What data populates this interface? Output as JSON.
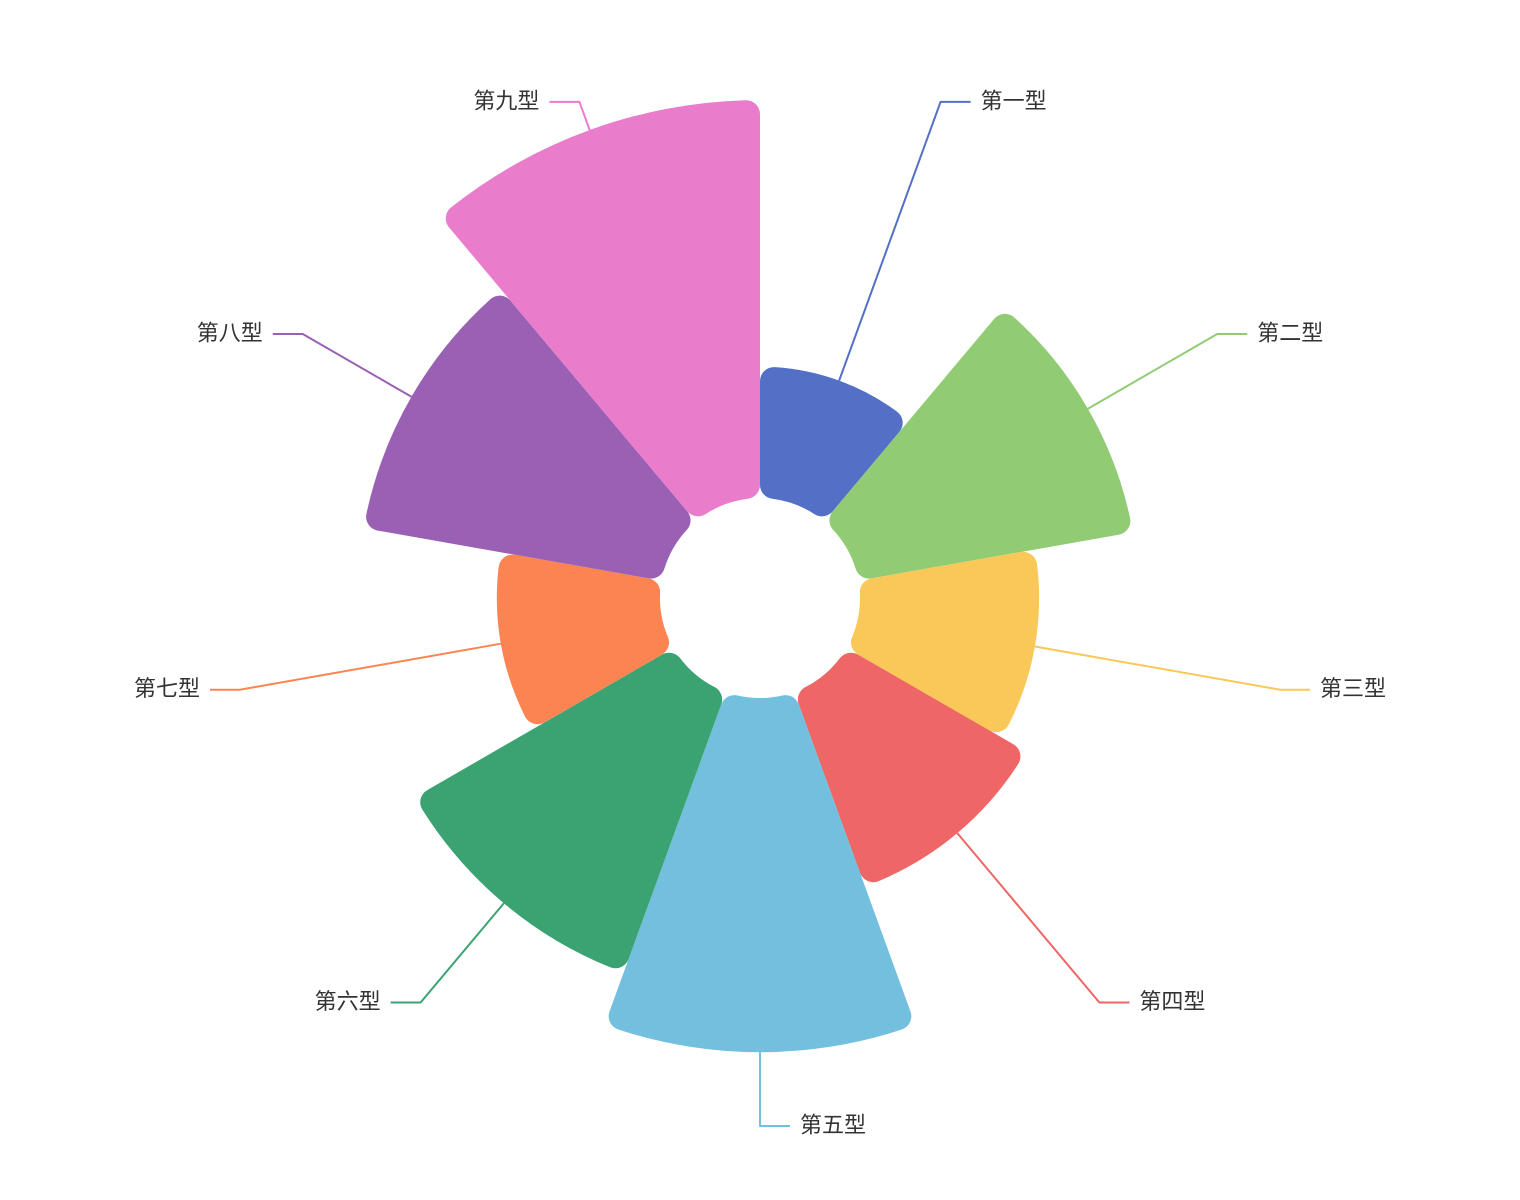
{
  "chart_data": {
    "type": "pie",
    "rose": true,
    "legend": false,
    "categories": [
      "第一型",
      "第二型",
      "第三型",
      "第四型",
      "第五型",
      "第六型",
      "第七型",
      "第八型",
      "第九型"
    ],
    "values": [
      33,
      70,
      45,
      52,
      89,
      75,
      41,
      76,
      100
    ],
    "colors": [
      "#5470c6",
      "#91cc75",
      "#fac858",
      "#ee6666",
      "#73c0de",
      "#3ba272",
      "#fc8452",
      "#9a60b4",
      "#ea7ccc"
    ]
  }
}
